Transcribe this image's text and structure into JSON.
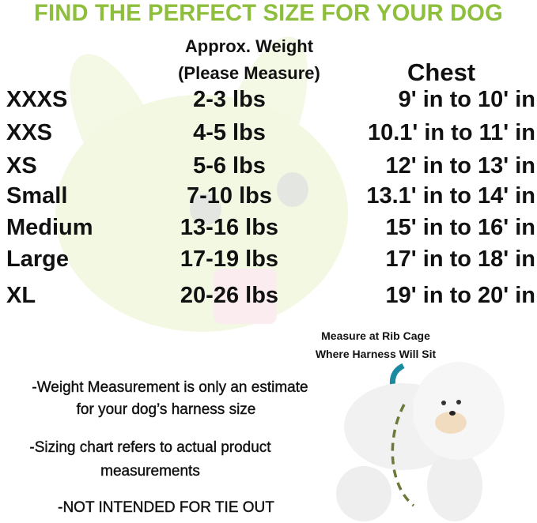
{
  "title": "FIND THE PERFECT SIZE FOR YOUR DOG",
  "colors": {
    "title": "#8dbf3c",
    "arrow": "#1a8aa0",
    "dash": "#6b7a3a"
  },
  "headers": {
    "weight_line1": "Approx. Weight",
    "weight_line2": "(Please Measure)",
    "chest": "Chest"
  },
  "rows": [
    {
      "size": "XXXS",
      "weight": "2-3 lbs",
      "chest": "9' in to 10' in"
    },
    {
      "size": "XXS",
      "weight": "4-5 lbs",
      "chest": "10.1' in to 11' in"
    },
    {
      "size": "XS",
      "weight": "5-6 lbs",
      "chest": "12' in to 13' in"
    },
    {
      "size": "Small",
      "weight": "7-10 lbs",
      "chest": "13.1' in to 14' in"
    },
    {
      "size": "Medium",
      "weight": "13-16 lbs",
      "chest": "15' in to 16' in"
    },
    {
      "size": "Large",
      "weight": "17-19 lbs",
      "chest": "17' in to 18' in"
    },
    {
      "size": "XL",
      "weight": "20-26 lbs",
      "chest": "19' in to 20' in"
    }
  ],
  "caption": {
    "line1": "Measure at Rib Cage",
    "line2": "Where Harness Will Sit"
  },
  "notes": {
    "n1a": "-Weight Measurement is only an estimate",
    "n1b": "for your dog’s harness size",
    "n2a": "-Sizing chart refers to actual product",
    "n2b": "measurements",
    "n3": "-NOT INTENDED FOR TIE OUT"
  }
}
